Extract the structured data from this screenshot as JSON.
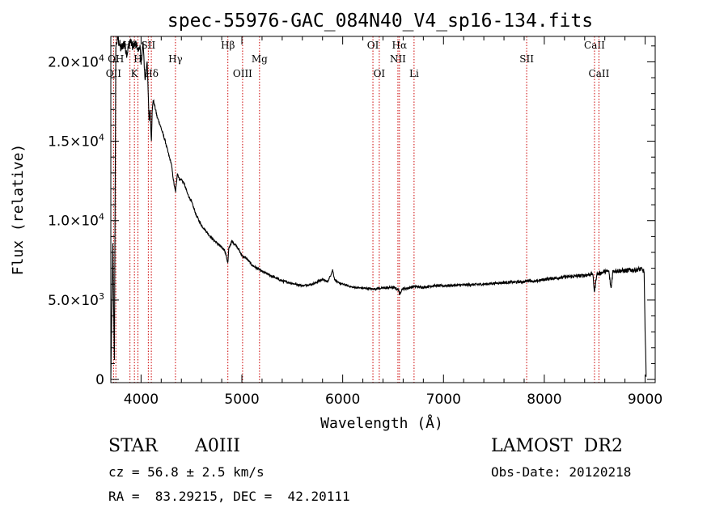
{
  "chart_data": {
    "type": "line",
    "title": "spec-55976-GAC_084N40_V4_sp16-134.fits",
    "xlabel": "Wavelength (Å)",
    "ylabel": "Flux (relative)",
    "xlim": [
      3700,
      9100
    ],
    "ylim": [
      -200,
      21600
    ],
    "x_ticks": [
      4000,
      5000,
      6000,
      7000,
      8000,
      9000
    ],
    "y_ticks": [
      {
        "value": 0,
        "mant": "0",
        "exp": ""
      },
      {
        "value": 5000,
        "mant": "5.0×10",
        "exp": "3"
      },
      {
        "value": 10000,
        "mant": "1.0×10",
        "exp": "4"
      },
      {
        "value": 15000,
        "mant": "1.5×10",
        "exp": "4"
      },
      {
        "value": 20000,
        "mant": "2.0×10",
        "exp": "4"
      }
    ],
    "spectrum": {
      "x": [
        3700,
        3720,
        3735,
        3750,
        3770,
        3800,
        3830,
        3860,
        3890,
        3920,
        3950,
        3970,
        3990,
        4000,
        4020,
        4040,
        4060,
        4080,
        4090,
        4102,
        4110,
        4120,
        4140,
        4160,
        4180,
        4200,
        4220,
        4240,
        4260,
        4280,
        4300,
        4320,
        4330,
        4341,
        4350,
        4360,
        4380,
        4400,
        4430,
        4460,
        4500,
        4550,
        4600,
        4650,
        4700,
        4750,
        4800,
        4830,
        4850,
        4861,
        4870,
        4880,
        4900,
        4950,
        5000,
        5050,
        5100,
        5200,
        5300,
        5400,
        5500,
        5600,
        5700,
        5800,
        5850,
        5880,
        5900,
        5920,
        5950,
        6000,
        6100,
        6200,
        6300,
        6400,
        6500,
        6540,
        6560,
        6563,
        6570,
        6590,
        6650,
        6700,
        6800,
        6900,
        7000,
        7200,
        7400,
        7600,
        7800,
        7850,
        7900,
        8000,
        8200,
        8400,
        8480,
        8498,
        8520,
        8542,
        8560,
        8600,
        8640,
        8662,
        8680,
        8700,
        8800,
        8900,
        8960,
        8990,
        9000,
        9010
      ],
      "y": [
        0,
        8500,
        1200,
        21000,
        21500,
        20800,
        21200,
        20500,
        21400,
        20900,
        21200,
        20700,
        21000,
        19800,
        21200,
        18800,
        20100,
        16300,
        17000,
        15000,
        16800,
        17600,
        17100,
        16500,
        16200,
        15800,
        15400,
        15000,
        14500,
        14000,
        13600,
        12600,
        12200,
        11800,
        12300,
        13000,
        12600,
        12600,
        12300,
        11700,
        11200,
        10300,
        9700,
        9300,
        8900,
        8600,
        8300,
        8150,
        7650,
        7300,
        8200,
        8400,
        8700,
        8400,
        7800,
        7600,
        7200,
        6800,
        6500,
        6200,
        6050,
        5900,
        6000,
        6300,
        6150,
        6550,
        6900,
        6300,
        6100,
        6000,
        5800,
        5750,
        5700,
        5750,
        5800,
        5700,
        5600,
        5200,
        5450,
        5700,
        5750,
        5850,
        5800,
        5900,
        5900,
        5950,
        6000,
        6100,
        6150,
        6250,
        6150,
        6300,
        6450,
        6550,
        6650,
        5500,
        6650,
        6650,
        6700,
        6800,
        6800,
        5700,
        6800,
        6850,
        6850,
        6900,
        6950,
        6800,
        3000,
        300
      ],
      "noise_amplitude": [
        0,
        200,
        150,
        150,
        400,
        350,
        300,
        300,
        250,
        250,
        200,
        200,
        150,
        150,
        150,
        120,
        120,
        120,
        120,
        120,
        100,
        100,
        100,
        80,
        80,
        80,
        80,
        80,
        80,
        80,
        80,
        80,
        80,
        80,
        80,
        80,
        80,
        80,
        80,
        80,
        80,
        80,
        80,
        80,
        80,
        80,
        80,
        80,
        80,
        80,
        80,
        80,
        80,
        80,
        80,
        80,
        80,
        80,
        80,
        80,
        60,
        60,
        60,
        60,
        60,
        60,
        60,
        60,
        60,
        60,
        60,
        60,
        60,
        60,
        80,
        80,
        80,
        80,
        80,
        80,
        80,
        80,
        80,
        80,
        80,
        80,
        80,
        80,
        80,
        80,
        80,
        100,
        100,
        120,
        120,
        120,
        120,
        120,
        120,
        120,
        120,
        120,
        150,
        150,
        150,
        150,
        150,
        150,
        150,
        150
      ]
    },
    "line_markers": [
      {
        "wavelength": 3727,
        "label": "OII",
        "row": 2
      },
      {
        "wavelength": 3750,
        "label": "OH",
        "row": 1
      },
      {
        "wavelength": 3890,
        "label": "Hδ",
        "row": 0
      },
      {
        "wavelength": 3934,
        "label": "K",
        "row": 2
      },
      {
        "wavelength": 3969,
        "label": "H",
        "row": 1
      },
      {
        "wavelength": 4072,
        "label": "SII",
        "row": 0
      },
      {
        "wavelength": 4102,
        "label": "Hδ",
        "row": 2
      },
      {
        "wavelength": 4341,
        "label": "Hγ",
        "row": 1
      },
      {
        "wavelength": 4861,
        "label": "Hβ",
        "row": 0
      },
      {
        "wavelength": 5007,
        "label": "OIII",
        "row": 2
      },
      {
        "wavelength": 5175,
        "label": "Mg",
        "row": 1
      },
      {
        "wavelength": 6300,
        "label": "OI",
        "row": 0
      },
      {
        "wavelength": 6363,
        "label": "OI",
        "row": 2
      },
      {
        "wavelength": 6548,
        "label": "NII",
        "row": 1
      },
      {
        "wavelength": 6563,
        "label": "Hα",
        "row": 0
      },
      {
        "wavelength": 6708,
        "label": "Li",
        "row": 2
      },
      {
        "wavelength": 7825,
        "label": "SII",
        "row": 1
      },
      {
        "wavelength": 8498,
        "label": "CaII",
        "row": 0
      },
      {
        "wavelength": 8542,
        "label": "CaII",
        "row": 2
      }
    ],
    "colors": {
      "spectrum": "#000000",
      "markers": "#cc0000",
      "axes": "#000000"
    },
    "grid": false
  },
  "info": {
    "object_type": "STAR",
    "subclass": "A0III",
    "survey": "LAMOST  DR2",
    "redshift": "cz = 56.8 ± 2.5 km/s",
    "obs_date": "Obs-Date: 20120218",
    "coords": "RA =  83.29215, DEC =  42.20111"
  }
}
